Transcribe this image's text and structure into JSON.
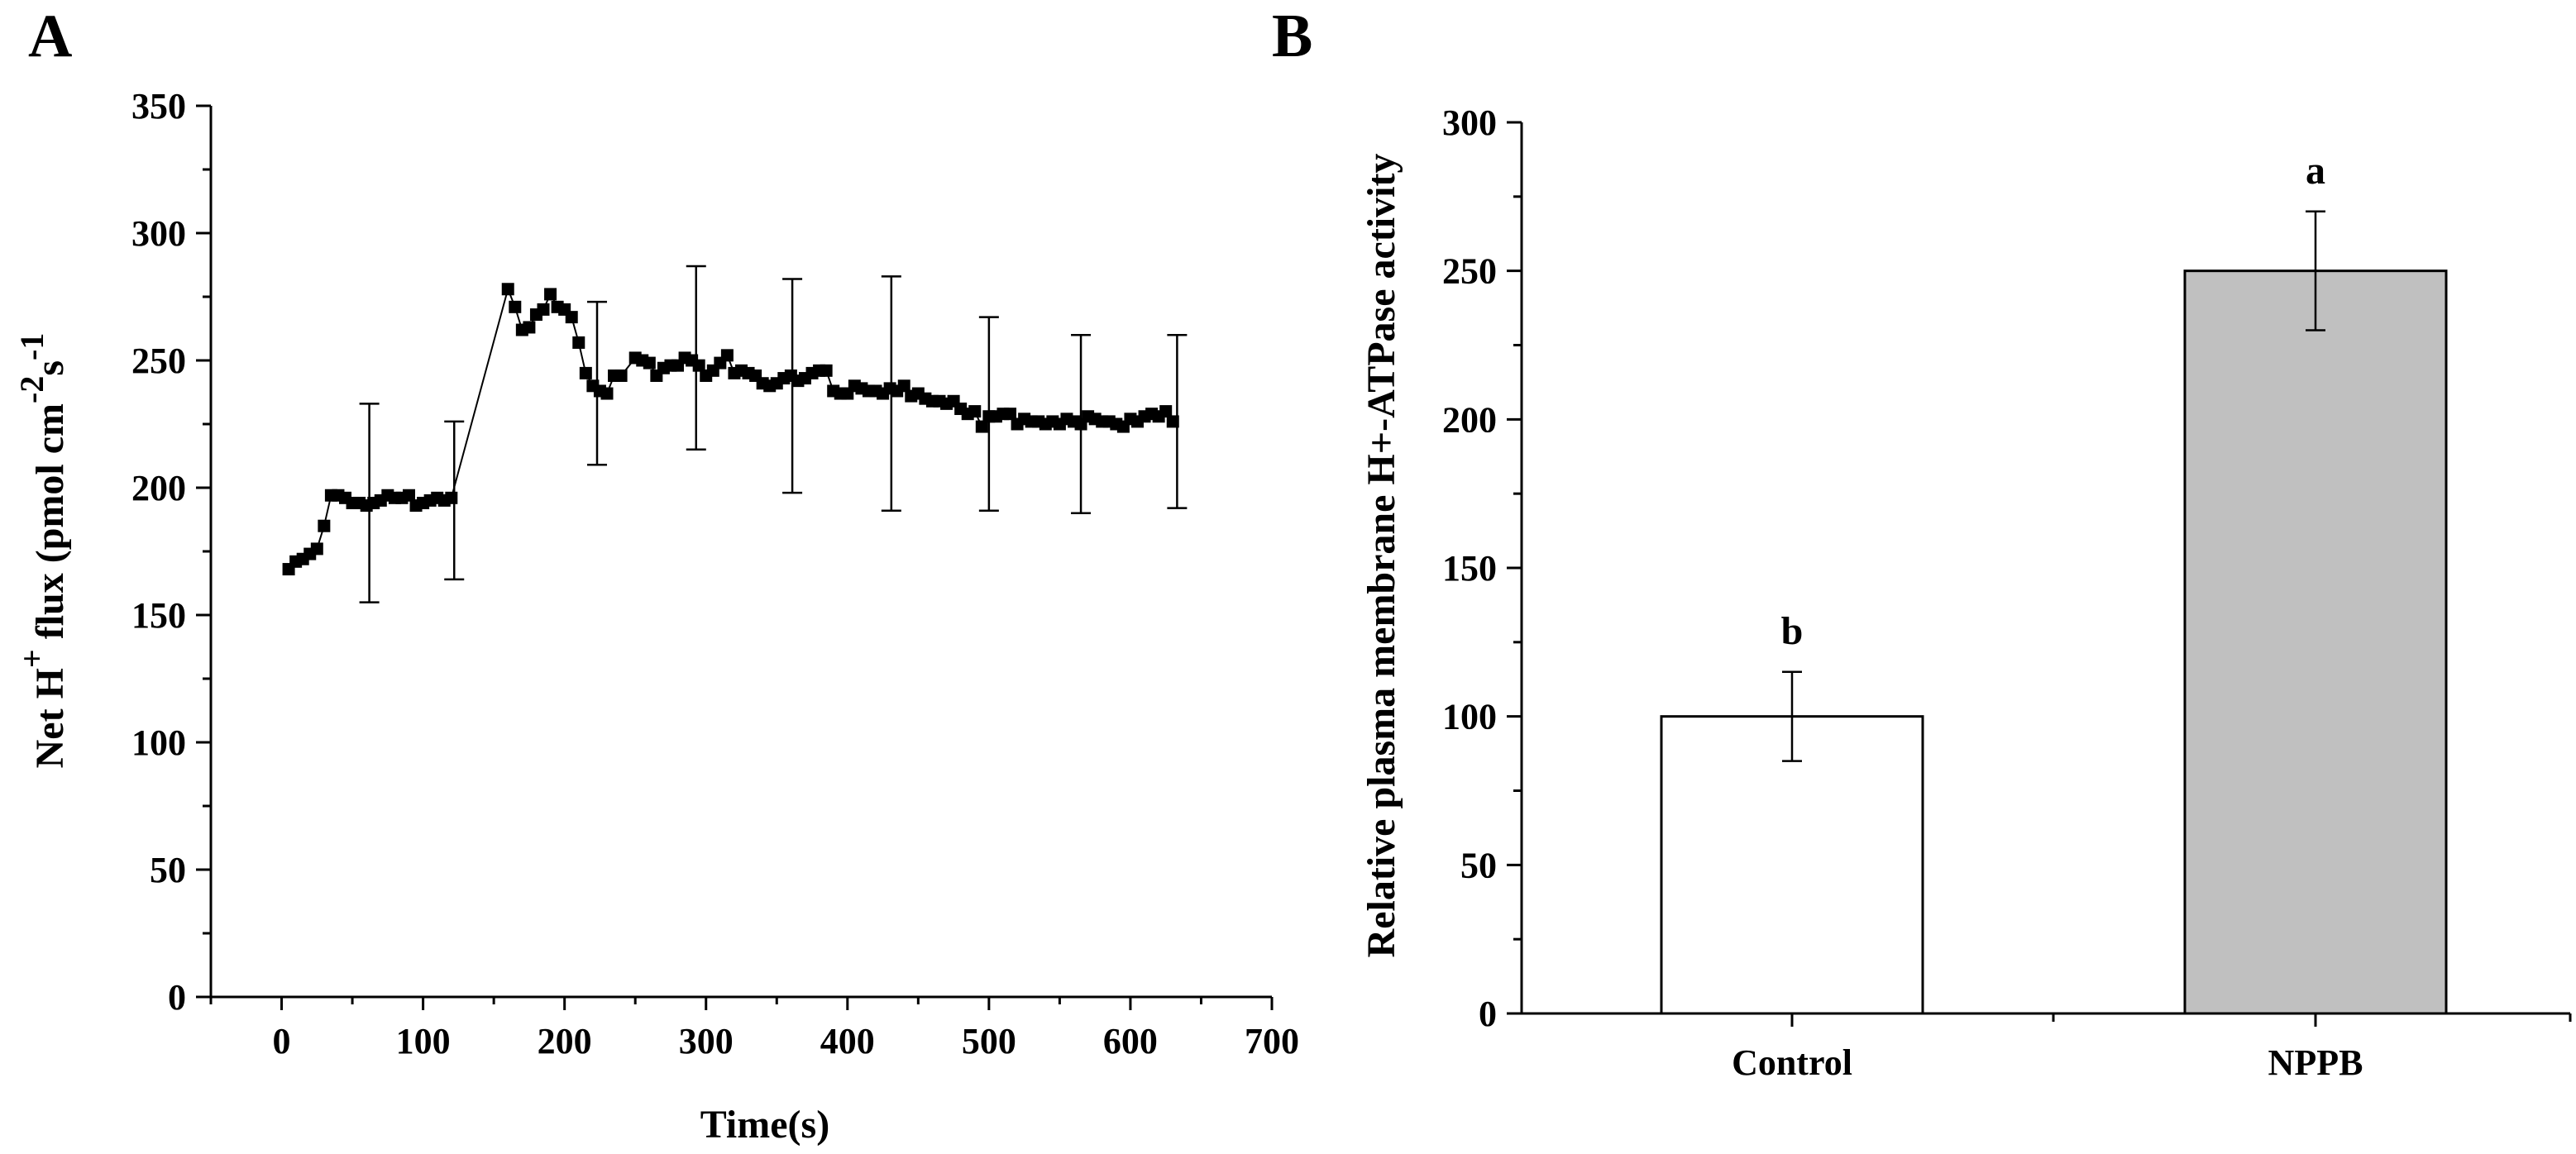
{
  "chart_data": [
    {
      "panel": "A",
      "type": "scatter",
      "title": "",
      "xlabel": "Time(s)",
      "ylabel": {
        "main": "Net  H",
        "sup1": "+",
        "mid": " flux (pmol cm",
        "sup2": "-2",
        "after": "s",
        "sup3": "-1"
      },
      "xlim": [
        -50,
        700
      ],
      "ylim": [
        0,
        350
      ],
      "xticks": [
        "0",
        "100",
        "200",
        "300",
        "400",
        "500",
        "600",
        "700"
      ],
      "yticks": [
        "0",
        "50",
        "100",
        "150",
        "200",
        "250",
        "300",
        "350"
      ],
      "series": [
        {
          "name": "Net H+ flux",
          "x": [
            5,
            10,
            15,
            20,
            25,
            30,
            35,
            40,
            45,
            50,
            55,
            60,
            65,
            70,
            75,
            80,
            85,
            90,
            95,
            100,
            105,
            110,
            115,
            120,
            160,
            165,
            170,
            175,
            180,
            185,
            190,
            195,
            200,
            205,
            210,
            215,
            220,
            225,
            230,
            235,
            240,
            250,
            255,
            260,
            265,
            270,
            275,
            280,
            285,
            290,
            295,
            300,
            305,
            310,
            315,
            320,
            325,
            330,
            335,
            340,
            345,
            350,
            355,
            360,
            365,
            370,
            375,
            380,
            385,
            390,
            395,
            400,
            405,
            410,
            415,
            420,
            425,
            430,
            435,
            440,
            445,
            450,
            455,
            460,
            465,
            470,
            475,
            480,
            485,
            490,
            495,
            500,
            505,
            510,
            515,
            520,
            525,
            530,
            535,
            540,
            545,
            550,
            555,
            560,
            565,
            570,
            575,
            580,
            585,
            590,
            595,
            600,
            605,
            610,
            615,
            620,
            625,
            630
          ],
          "y": [
            168,
            171,
            172,
            174,
            176,
            185,
            197,
            197,
            196,
            194,
            194,
            193,
            194,
            195,
            197,
            196,
            196,
            197,
            193,
            194,
            195,
            196,
            195,
            196,
            278,
            271,
            262,
            263,
            268,
            270,
            276,
            271,
            270,
            267,
            257,
            245,
            240,
            238,
            237,
            244,
            244,
            251,
            250,
            249,
            244,
            247,
            248,
            248,
            251,
            250,
            248,
            244,
            246,
            249,
            252,
            245,
            246,
            245,
            244,
            241,
            240,
            241,
            243,
            244,
            242,
            243,
            245,
            246,
            246,
            238,
            237,
            237,
            240,
            239,
            238,
            238,
            237,
            239,
            238,
            240,
            236,
            237,
            235,
            234,
            234,
            233,
            234,
            231,
            229,
            230,
            224,
            228,
            228,
            229,
            229,
            225,
            227,
            226,
            226,
            225,
            226,
            225,
            227,
            226,
            225,
            228,
            227,
            226,
            226,
            225,
            224,
            227,
            226,
            228,
            229,
            228,
            230,
            226
          ]
        }
      ],
      "error_bars": [
        {
          "x": 62,
          "y": 194,
          "err": 39
        },
        {
          "x": 122,
          "y": 195,
          "err": 31
        },
        {
          "x": 223,
          "y": 241,
          "err": 32
        },
        {
          "x": 293,
          "y": 251,
          "err": 36
        },
        {
          "x": 361,
          "y": 240,
          "err": 42
        },
        {
          "x": 431,
          "y": 237,
          "err": 46
        },
        {
          "x": 500,
          "y": 229,
          "err": 38
        },
        {
          "x": 565,
          "y": 225,
          "err": 35
        },
        {
          "x": 633,
          "y": 226,
          "err": 34
        }
      ]
    },
    {
      "panel": "B",
      "type": "bar",
      "title": "",
      "xlabel": "",
      "ylabel": "Relative plasma membrane H+-ATPase activity",
      "categories": [
        "Control",
        "NPPB"
      ],
      "values": [
        100,
        250
      ],
      "errors": [
        15,
        20
      ],
      "significance": [
        "b",
        "a"
      ],
      "bar_colors": [
        "#ffffff",
        "#c0c0c0"
      ],
      "ylim": [
        0,
        300
      ],
      "yticks": [
        "0",
        "50",
        "100",
        "150",
        "200",
        "250",
        "300"
      ]
    }
  ]
}
